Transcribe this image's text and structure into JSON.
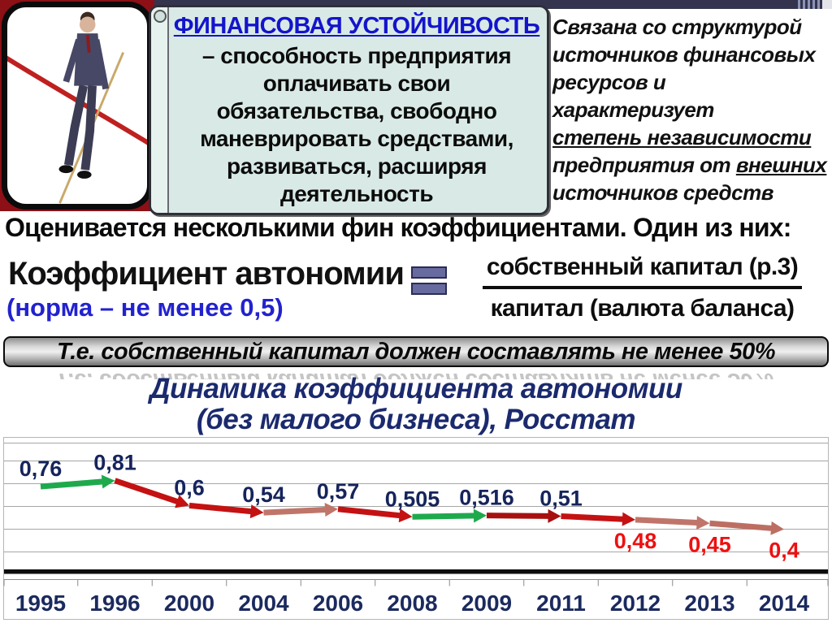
{
  "colors": {
    "corner_maroon": "#8c1016",
    "callout_bg": "#d9eae6",
    "title_blue": "#1414cc",
    "norma_blue": "#2222cf",
    "navy": "#16245c",
    "equals_fill": "#676b9f",
    "green": "#1fa94d",
    "red": "#c41212",
    "rosy": "#c0756a"
  },
  "definition_box": {
    "title": "ФИНАНСОВАЯ УСТОЙЧИВОСТЬ",
    "body": "– способность предприятия\nоплачивать свои\nобязательства, свободно\nманеврировать средствами,\nразвиваться, расширяя\nдеятельность"
  },
  "right_note": {
    "lines": [
      [
        {
          "t": "Связана со структурой"
        }
      ],
      [
        {
          "t": "источников финансовых"
        }
      ],
      [
        {
          "t": "ресурсов и"
        }
      ],
      [
        {
          "t": "характеризует"
        }
      ],
      [
        {
          "t": "степень независимости",
          "u": true
        }
      ],
      [
        {
          "t": "предприятия от "
        },
        {
          "t": "внешних",
          "u": true
        }
      ],
      [
        {
          "t": "источников средств"
        }
      ]
    ]
  },
  "assessment_line": "Оценивается несколькими фин коэффициентами. Один из них:",
  "coefficient": {
    "name": "Коэффициент автономии",
    "norm": "(норма – не менее 0,5)"
  },
  "formula": {
    "numerator": "собственный капитал (р.3)",
    "denominator": "капитал (валюта баланса)"
  },
  "banner": {
    "text": "Т.е. собственный капитал должен составлять не менее 50%"
  },
  "chart_data": {
    "type": "line",
    "title": "Динамика коэффициента автономии (без малого бизнеса), Росстат",
    "title_lines": [
      "Динамика коэффициента автономии",
      "(без малого бизнеса), Росстат"
    ],
    "categories": [
      "1995",
      "1996",
      "2000",
      "2004",
      "2006",
      "2008",
      "2009",
      "2011",
      "2012",
      "2013",
      "2014"
    ],
    "values": [
      0.76,
      0.81,
      0.6,
      0.54,
      0.57,
      0.505,
      0.516,
      0.51,
      0.48,
      0.45,
      0.4
    ],
    "labels": [
      "0,76",
      "0,81",
      "0,6",
      "0,54",
      "0,57",
      "0,505",
      "0,516",
      "0,51",
      "0,48",
      "0,45",
      "0,4"
    ],
    "label_sides": [
      "above",
      "above",
      "above",
      "above",
      "above",
      "above",
      "above",
      "above",
      "below",
      "below",
      "below"
    ],
    "label_color_above": "#16245c",
    "label_color_below": "#ee1010",
    "segment_colors": [
      "#1fa94d",
      "#c41212",
      "#c41212",
      "#c0756a",
      "#c41212",
      "#1fa94d",
      "#a81010",
      "#c41212",
      "#c0756a",
      "#bd6e62"
    ],
    "year_label_color": "#1b2a5e",
    "grid": true,
    "ylim": [
      0,
      1.15
    ],
    "legend": "none"
  }
}
